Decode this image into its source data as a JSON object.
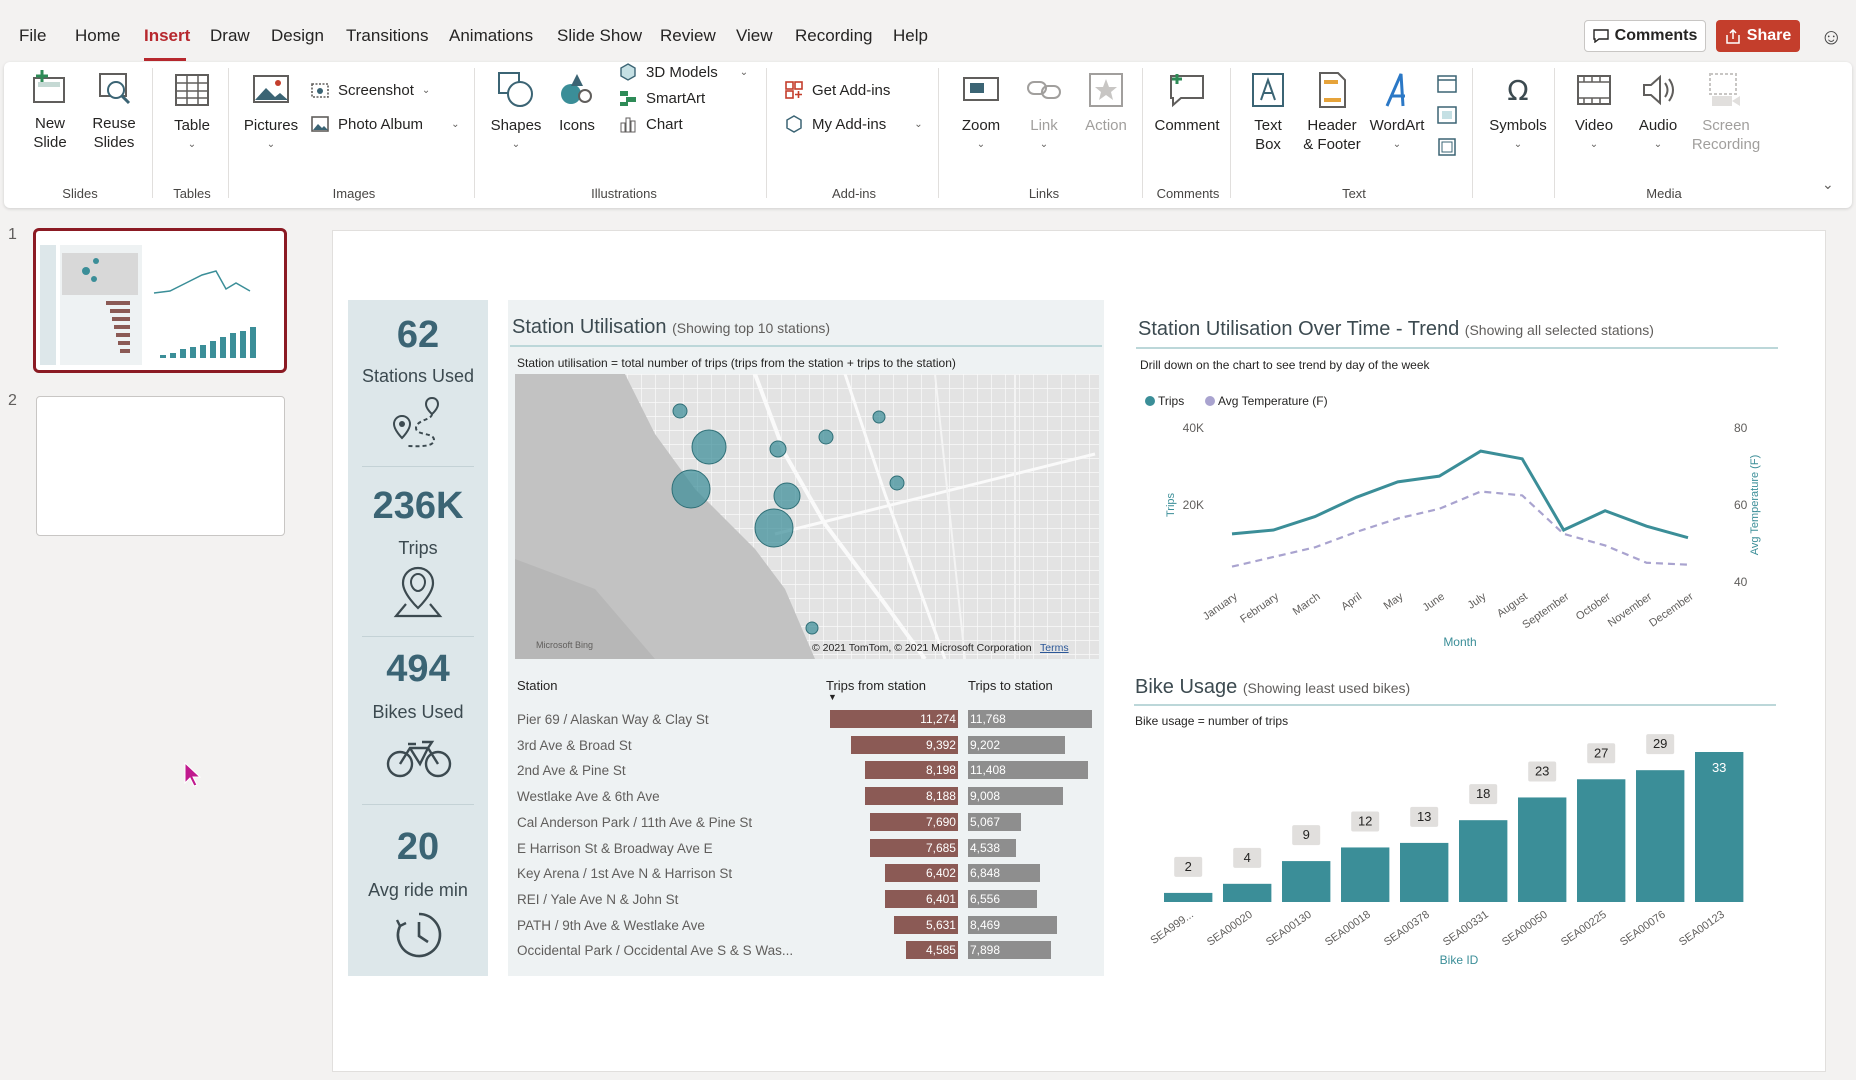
{
  "menu": {
    "items": [
      "File",
      "Home",
      "Insert",
      "Draw",
      "Design",
      "Transitions",
      "Animations",
      "Slide Show",
      "Review",
      "View",
      "Recording",
      "Help"
    ],
    "active": "Insert",
    "comments_label": "Comments",
    "share_label": "Share"
  },
  "ribbon": {
    "new_slide": "New\nSlide",
    "reuse_slides": "Reuse\nSlides",
    "table": "Table",
    "pictures": "Pictures",
    "screenshot": "Screenshot",
    "photo_album": "Photo Album",
    "shapes": "Shapes",
    "icons": "Icons",
    "models_3d": "3D Models",
    "smartart": "SmartArt",
    "chart": "Chart",
    "get_addins": "Get Add-ins",
    "my_addins": "My Add-ins",
    "zoom": "Zoom",
    "link": "Link",
    "action": "Action",
    "comment": "Comment",
    "text_box": "Text\nBox",
    "header_footer": "Header\n& Footer",
    "wordart": "WordArt",
    "symbols": "Symbols",
    "video": "Video",
    "audio": "Audio",
    "screen_recording": "Screen\nRecording",
    "groups": {
      "slides": "Slides",
      "tables": "Tables",
      "images": "Images",
      "illustrations": "Illustrations",
      "addins": "Add-ins",
      "links": "Links",
      "comments": "Comments",
      "text": "Text",
      "media": "Media"
    }
  },
  "thumbnails": {
    "slide1": "1",
    "slide2": "2"
  },
  "kpis": [
    {
      "value": "62",
      "label": "Stations Used",
      "icon": "route-pin-icon"
    },
    {
      "value": "236K",
      "label": "Trips",
      "icon": "location-pin-icon"
    },
    {
      "value": "494",
      "label": "Bikes Used",
      "icon": "bicycle-icon"
    },
    {
      "value": "20",
      "label": "Avg ride min",
      "icon": "clock-icon"
    }
  ],
  "utilisation": {
    "title": "Station Utilisation",
    "subtitle": "(Showing top 10 stations)",
    "note": "Station utilisation = total number of trips (trips from the station + trips to the station)",
    "map_credit": "© 2021 TomTom, © 2021 Microsoft Corporation",
    "map_terms": "Terms",
    "map_brand": "Microsoft Bing",
    "col_station": "Station",
    "col_from": "Trips from station",
    "col_to": "Trips to station",
    "rows": [
      {
        "station": "Pier 69 / Alaskan Way & Clay St",
        "from": "11,274",
        "to": "11,768",
        "from_v": 11274,
        "to_v": 11768
      },
      {
        "station": "3rd Ave & Broad St",
        "from": "9,392",
        "to": "9,202",
        "from_v": 9392,
        "to_v": 9202
      },
      {
        "station": "2nd Ave & Pine St",
        "from": "8,198",
        "to": "11,408",
        "from_v": 8198,
        "to_v": 11408
      },
      {
        "station": "Westlake Ave & 6th Ave",
        "from": "8,188",
        "to": "9,008",
        "from_v": 8188,
        "to_v": 9008
      },
      {
        "station": "Cal Anderson Park / 11th Ave & Pine St",
        "from": "7,690",
        "to": "5,067",
        "from_v": 7690,
        "to_v": 5067
      },
      {
        "station": "E Harrison St & Broadway Ave E",
        "from": "7,685",
        "to": "4,538",
        "from_v": 7685,
        "to_v": 4538
      },
      {
        "station": "Key Arena / 1st Ave N & Harrison St",
        "from": "6,402",
        "to": "6,848",
        "from_v": 6402,
        "to_v": 6848
      },
      {
        "station": "REI / Yale Ave N & John St",
        "from": "6,401",
        "to": "6,556",
        "from_v": 6401,
        "to_v": 6556
      },
      {
        "station": "PATH / 9th Ave & Westlake Ave",
        "from": "5,631",
        "to": "8,469",
        "from_v": 5631,
        "to_v": 8469
      },
      {
        "station": "Occidental Park / Occidental Ave S & S Was...",
        "from": "4,585",
        "to": "7,898",
        "from_v": 4585,
        "to_v": 7898
      }
    ]
  },
  "trend": {
    "title": "Station Utilisation Over Time - Trend",
    "subtitle": "(Showing all selected stations)",
    "note": "Drill down on the chart to see trend by day of the week",
    "legend_trips": "Trips",
    "legend_temp": "Avg Temperature (F)"
  },
  "bikes": {
    "title": "Bike Usage",
    "subtitle": "(Showing least used bikes)",
    "note": "Bike usage = number of trips"
  },
  "chart_data": [
    {
      "type": "line",
      "title": "Station Utilisation Over Time - Trend",
      "xlabel": "Month",
      "ylabel": "Trips",
      "y2label": "Avg Temperature (F)",
      "categories": [
        "January",
        "February",
        "March",
        "April",
        "May",
        "June",
        "July",
        "August",
        "September",
        "October",
        "November",
        "December"
      ],
      "ylim": [
        0,
        40000
      ],
      "y2lim": [
        40,
        80
      ],
      "yticks": [
        "20K",
        "40K"
      ],
      "y2ticks": [
        "40",
        "60",
        "80"
      ],
      "series": [
        {
          "name": "Trips",
          "axis": "left",
          "color": "#3b8e98",
          "values": [
            12500,
            13500,
            17000,
            22000,
            26000,
            27500,
            34000,
            32000,
            13500,
            18500,
            14500,
            11500
          ]
        },
        {
          "name": "Avg Temperature (F)",
          "axis": "right",
          "color": "#a9a3cf",
          "dashed": true,
          "values": [
            44,
            46.5,
            49,
            53,
            56.5,
            59,
            63.5,
            62.5,
            52.5,
            49.5,
            45,
            44.5
          ]
        }
      ]
    },
    {
      "type": "bar",
      "title": "Bike Usage",
      "xlabel": "Bike ID",
      "categories": [
        "SEA999...",
        "SEA00020",
        "SEA00130",
        "SEA00018",
        "SEA00378",
        "SEA00331",
        "SEA00050",
        "SEA00225",
        "SEA00076",
        "SEA00123"
      ],
      "values": [
        2,
        4,
        9,
        12,
        13,
        18,
        23,
        27,
        29,
        33
      ],
      "color": "#3b8e98"
    }
  ]
}
